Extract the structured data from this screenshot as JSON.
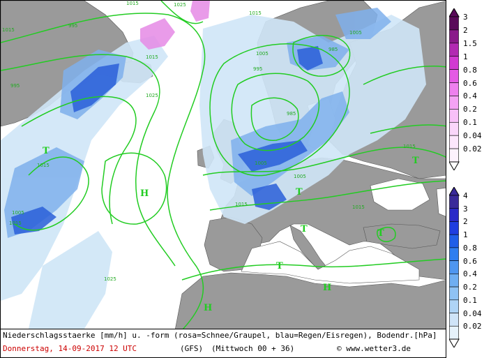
{
  "map": {
    "region": "Europe / North Atlantic",
    "colors": {
      "land": "#9a9a9a",
      "sea": "#ffffff",
      "isobar": "#22cc22",
      "rain_light": "#cfe6f7",
      "rain_mid": "#7fb0ec",
      "rain_heavy": "#2a5fd8",
      "snow": "#e58ae5"
    },
    "pressure_systems": [
      {
        "type": "H",
        "label": "H"
      },
      {
        "type": "H",
        "label": "H"
      },
      {
        "type": "H",
        "label": "H"
      },
      {
        "type": "T",
        "label": "T"
      },
      {
        "type": "T",
        "label": "T"
      },
      {
        "type": "T",
        "label": "T"
      },
      {
        "type": "T",
        "label": "T"
      },
      {
        "type": "T",
        "label": "T"
      },
      {
        "type": "T",
        "label": "T"
      }
    ],
    "isobar_labels": [
      "1025",
      "1015",
      "995",
      "1015",
      "1005",
      "1025",
      "1015",
      "995",
      "985",
      "995",
      "1005",
      "1015",
      "1015",
      "1015",
      "1005",
      "1015",
      "1015",
      "1025",
      "985",
      "1015",
      "1005",
      "1005"
    ]
  },
  "legend_snow": {
    "values": [
      "3",
      "2",
      "1.5",
      "1",
      "0.8",
      "0.6",
      "0.4",
      "0.2",
      "0.1",
      "0.04",
      "0.02"
    ],
    "colors": [
      "#5a0a5a",
      "#8a1a8a",
      "#b22ab2",
      "#d23ad2",
      "#e45ae4",
      "#ee80ee",
      "#f4a2f4",
      "#f8c0f8",
      "#fad6fa",
      "#fce6fc",
      "#fdf2fd"
    ]
  },
  "legend_rain": {
    "values": [
      "4",
      "3",
      "2",
      "1",
      "0.8",
      "0.6",
      "0.4",
      "0.2",
      "0.1",
      "0.04",
      "0.02"
    ],
    "colors": [
      "#3a2a9a",
      "#2a2ac8",
      "#1f3ee0",
      "#1f5ee8",
      "#2f7ef0",
      "#4f96f0",
      "#6faef2",
      "#8fc2f4",
      "#afd4f6",
      "#cfe4f8",
      "#e6f2fb"
    ]
  },
  "footer": {
    "line1": "Niederschlagsstaerke [mm/h] u. -form (rosa=Schnee/Graupel, blau=Regen/Eisregen), Bodendr.[hPa]",
    "date": "Donnerstag, 14-09-2017  12 UTC",
    "model": "(GFS)",
    "run": "(Mittwoch 00 + 36)",
    "credit": "© www.wetter3.de"
  }
}
